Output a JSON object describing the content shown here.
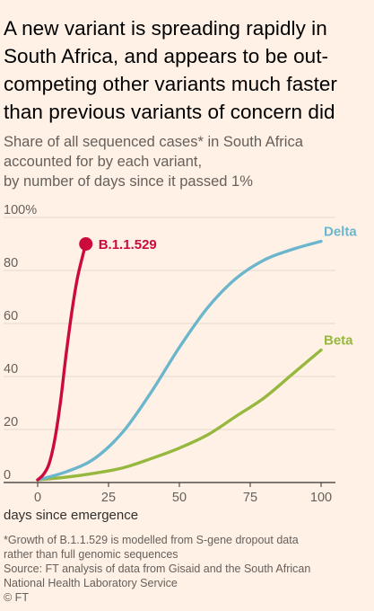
{
  "header": {
    "title": "A new variant is spreading rapidly in South Africa, and appears to be out-competing other variants much faster than previous variants of concern did",
    "subtitle_lines": [
      "Share of all sequenced cases* in South Africa",
      "accounted for by each variant,",
      "by number of days since it passed 1%"
    ]
  },
  "footer": {
    "lines": [
      "*Growth of B.1.1.529 is modelled from S-gene dropout data",
      "rather than full genomic sequences",
      "Source: FT analysis of data from Gisaid and the South African",
      "National Health Laboratory Service",
      "© FT"
    ]
  },
  "chart_data": {
    "type": "line",
    "xlabel": "days since emergence",
    "ylabel": "",
    "xlim": [
      0,
      100
    ],
    "ylim": [
      0,
      100
    ],
    "x_ticks": [
      0,
      25,
      50,
      75,
      100
    ],
    "y_ticks": [
      0,
      20,
      40,
      60,
      80,
      100
    ],
    "y_tick_labels": [
      "0",
      "20",
      "40",
      "60",
      "80",
      "100%"
    ],
    "grid": true,
    "legend": "direct-labels",
    "series": [
      {
        "name": "B.1.1.529",
        "color": "#cc0a3b",
        "end_marker": true,
        "x": [
          0,
          2,
          4,
          6,
          8,
          10,
          12,
          14,
          16,
          17
        ],
        "y": [
          1,
          3,
          7,
          16,
          30,
          48,
          64,
          77,
          86,
          90
        ]
      },
      {
        "name": "Delta",
        "color": "#6cb6cd",
        "end_marker": false,
        "x": [
          0,
          10,
          20,
          30,
          40,
          50,
          60,
          70,
          80,
          90,
          100
        ],
        "y": [
          1,
          4,
          9,
          19,
          34,
          51,
          66,
          77,
          84,
          88,
          91
        ]
      },
      {
        "name": "Beta",
        "color": "#97b83e",
        "end_marker": false,
        "x": [
          0,
          10,
          20,
          30,
          40,
          50,
          60,
          70,
          80,
          90,
          100
        ],
        "y": [
          1,
          2,
          3.5,
          5.5,
          9,
          13,
          18,
          25,
          32,
          41,
          50
        ]
      }
    ]
  }
}
